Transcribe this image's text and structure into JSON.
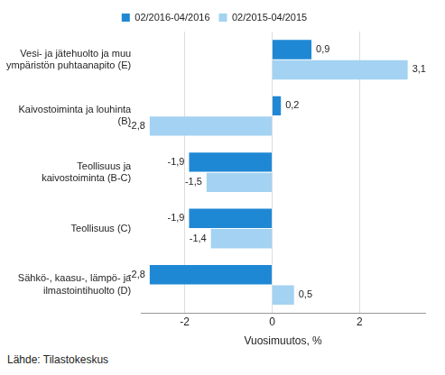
{
  "chart_data": {
    "type": "bar",
    "orientation": "horizontal",
    "categories": [
      "Vesi- ja jätehuolto ja muu ympäristön puhtaanapito (E)",
      "Kaivostoiminta ja louhinta (B)",
      "Teollisuus ja kaivostoiminta (B-C)",
      "Teollisuus (C)",
      "Sähkö-, kaasu-, lämpö- ja ilmastointihuolto (D)"
    ],
    "series": [
      {
        "name": "02/2016-04/2016",
        "color": "#1f88d4",
        "values": [
          0.9,
          0.2,
          -1.9,
          -1.9,
          -2.8
        ],
        "value_labels": [
          "0,9",
          "0,2",
          "-1,9",
          "-1,9",
          "-2,8"
        ]
      },
      {
        "name": "02/2015-04/2015",
        "color": "#a3d2f2",
        "values": [
          3.1,
          -2.8,
          -1.5,
          -1.4,
          0.5
        ],
        "value_labels": [
          "3,1",
          "-2,8",
          "-1,5",
          "-1,4",
          "0,5"
        ]
      }
    ],
    "x_label": "Vuosimuutos, %",
    "xlim": [
      -3,
      3.5
    ],
    "xticks": [
      -2,
      0,
      2
    ],
    "grid": true,
    "legend": "top",
    "data_labels": true,
    "annotations": [
      "Lähde: Tilastokeskus"
    ]
  }
}
